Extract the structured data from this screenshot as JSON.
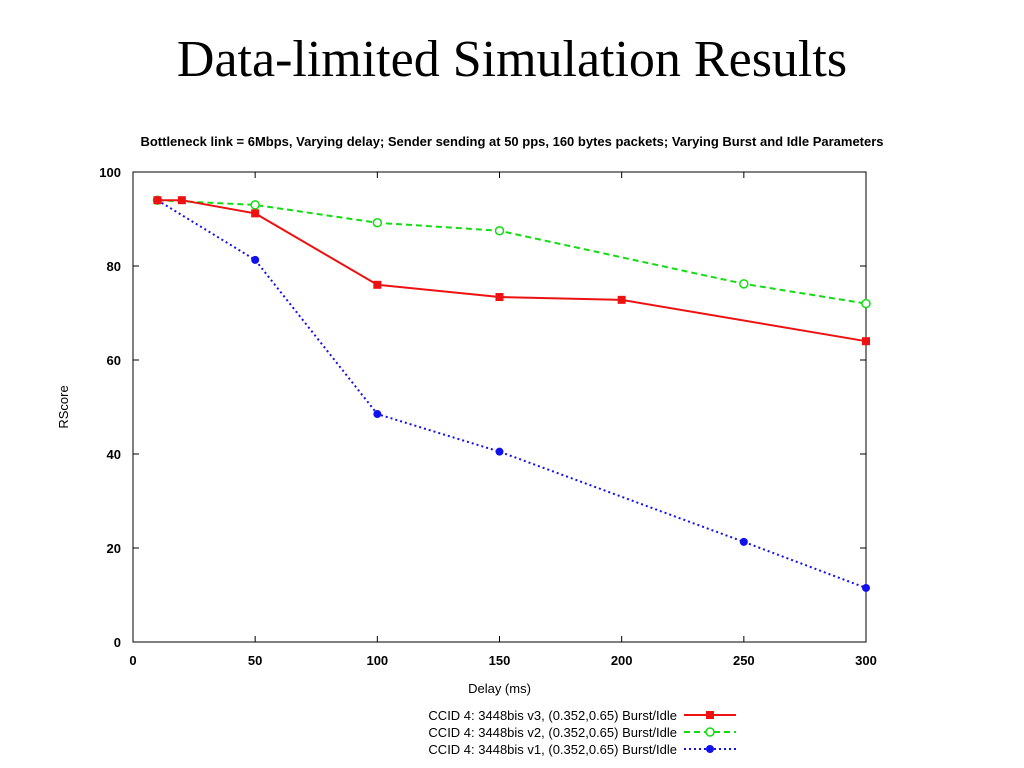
{
  "slide": {
    "title": "Data-limited Simulation Results"
  },
  "chart_data": {
    "type": "line",
    "title": "Bottleneck link = 6Mbps, Varying delay; Sender sending at 50 pps, 160 bytes packets; Varying Burst and Idle Parameters",
    "xlabel": "Delay (ms)",
    "ylabel": "RScore",
    "xlim": [
      0,
      300
    ],
    "ylim": [
      0,
      100
    ],
    "xticks": [
      0,
      50,
      100,
      150,
      200,
      250,
      300
    ],
    "yticks": [
      0,
      20,
      40,
      60,
      80,
      100
    ],
    "grid": false,
    "legend_position": "bottom-center",
    "series": [
      {
        "name": "CCID 4: 3448bis v3, (0.352,0.65) Burst/Idle",
        "color": "#ee1111",
        "line_style": "solid",
        "marker": "filled-square",
        "x": [
          10,
          20,
          50,
          100,
          150,
          200,
          300
        ],
        "y": [
          94,
          94,
          91.2,
          76,
          73.4,
          72.8,
          64
        ]
      },
      {
        "name": "CCID 4: 3448bis v2, (0.352,0.65) Burst/Idle",
        "color": "#11dd11",
        "line_style": "dashed",
        "marker": "open-circle",
        "x": [
          10,
          50,
          100,
          150,
          250,
          300
        ],
        "y": [
          94,
          93,
          89.2,
          87.5,
          76.2,
          72
        ]
      },
      {
        "name": "CCID 4: 3448bis v1, (0.352,0.65) Burst/Idle",
        "color": "#1111ee",
        "line_style": "dotted",
        "marker": "filled-circle",
        "x": [
          10,
          50,
          100,
          150,
          250,
          300
        ],
        "y": [
          94,
          81.3,
          48.5,
          40.5,
          21.3,
          11.5
        ]
      }
    ]
  }
}
